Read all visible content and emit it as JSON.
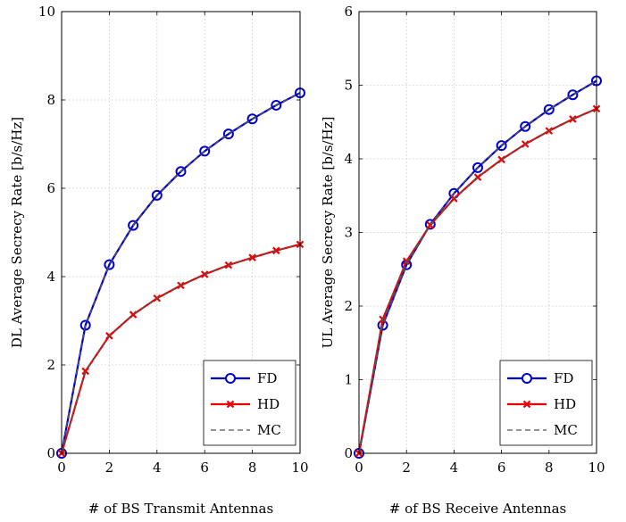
{
  "chart_data": [
    {
      "type": "line",
      "xlabel": "# of BS Transmit Antennas",
      "ylabel": "DL Average Secrecy Rate [b/s/Hz]",
      "xlim": [
        0,
        10
      ],
      "ylim": [
        0,
        10
      ],
      "xticks": [
        0,
        2,
        4,
        6,
        8,
        10
      ],
      "yticks": [
        0,
        2,
        4,
        6,
        8,
        10
      ],
      "grid": true,
      "legend_position": "bottom-right",
      "series": [
        {
          "name": "FD",
          "color": "#0000cc",
          "marker": "circle",
          "dash": "solid",
          "x": [
            0,
            1,
            2,
            3,
            4,
            5,
            6,
            7,
            8,
            9,
            10
          ],
          "y": [
            0,
            2.9,
            4.27,
            5.16,
            5.84,
            6.38,
            6.84,
            7.23,
            7.57,
            7.88,
            8.16
          ]
        },
        {
          "name": "HD",
          "color": "#ee0000",
          "marker": "x",
          "dash": "solid",
          "x": [
            0,
            1,
            2,
            3,
            4,
            5,
            6,
            7,
            8,
            9,
            10
          ],
          "y": [
            0,
            1.86,
            2.66,
            3.14,
            3.51,
            3.8,
            4.05,
            4.26,
            4.43,
            4.59,
            4.73
          ]
        },
        {
          "name": "MC",
          "color": "#555555",
          "marker": "none",
          "dash": "dashed",
          "x": [
            0,
            1,
            2,
            3,
            4,
            5,
            6,
            7,
            8,
            9,
            10
          ],
          "y": [
            0,
            2.9,
            4.27,
            5.16,
            5.84,
            6.38,
            6.84,
            7.23,
            7.57,
            7.88,
            8.16
          ]
        },
        {
          "name": "",
          "color": "#555555",
          "marker": "none",
          "dash": "dashed",
          "x": [
            0,
            1,
            2,
            3,
            4,
            5,
            6,
            7,
            8,
            9,
            10
          ],
          "y": [
            0,
            1.86,
            2.66,
            3.14,
            3.51,
            3.8,
            4.05,
            4.26,
            4.43,
            4.59,
            4.73
          ]
        }
      ]
    },
    {
      "type": "line",
      "xlabel": "# of BS Receive Antennas",
      "ylabel": "UL Average Secrecy Rate [b/s/Hz]",
      "xlim": [
        0,
        10
      ],
      "ylim": [
        0,
        6
      ],
      "xticks": [
        0,
        2,
        4,
        6,
        8,
        10
      ],
      "yticks": [
        0,
        1,
        2,
        3,
        4,
        5,
        6
      ],
      "grid": true,
      "legend_position": "bottom-right",
      "series": [
        {
          "name": "FD",
          "color": "#0000cc",
          "marker": "circle",
          "dash": "solid",
          "x": [
            0,
            1,
            2,
            3,
            4,
            5,
            6,
            7,
            8,
            9,
            10
          ],
          "y": [
            0,
            1.74,
            2.56,
            3.11,
            3.53,
            3.88,
            4.18,
            4.44,
            4.67,
            4.87,
            5.06
          ]
        },
        {
          "name": "HD",
          "color": "#ee0000",
          "marker": "x",
          "dash": "solid",
          "x": [
            0,
            1,
            2,
            3,
            4,
            5,
            6,
            7,
            8,
            9,
            10
          ],
          "y": [
            0,
            1.82,
            2.61,
            3.1,
            3.46,
            3.75,
            3.99,
            4.2,
            4.38,
            4.54,
            4.68
          ]
        },
        {
          "name": "MC",
          "color": "#555555",
          "marker": "none",
          "dash": "dashed",
          "x": [
            0,
            1,
            2,
            3,
            4,
            5,
            6,
            7,
            8,
            9,
            10
          ],
          "y": [
            0,
            1.74,
            2.56,
            3.11,
            3.53,
            3.88,
            4.18,
            4.44,
            4.67,
            4.87,
            5.06
          ]
        },
        {
          "name": "",
          "color": "#555555",
          "marker": "none",
          "dash": "dashed",
          "x": [
            0,
            1,
            2,
            3,
            4,
            5,
            6,
            7,
            8,
            9,
            10
          ],
          "y": [
            0,
            1.82,
            2.61,
            3.1,
            3.46,
            3.75,
            3.99,
            4.2,
            4.38,
            4.54,
            4.68
          ]
        }
      ]
    }
  ]
}
